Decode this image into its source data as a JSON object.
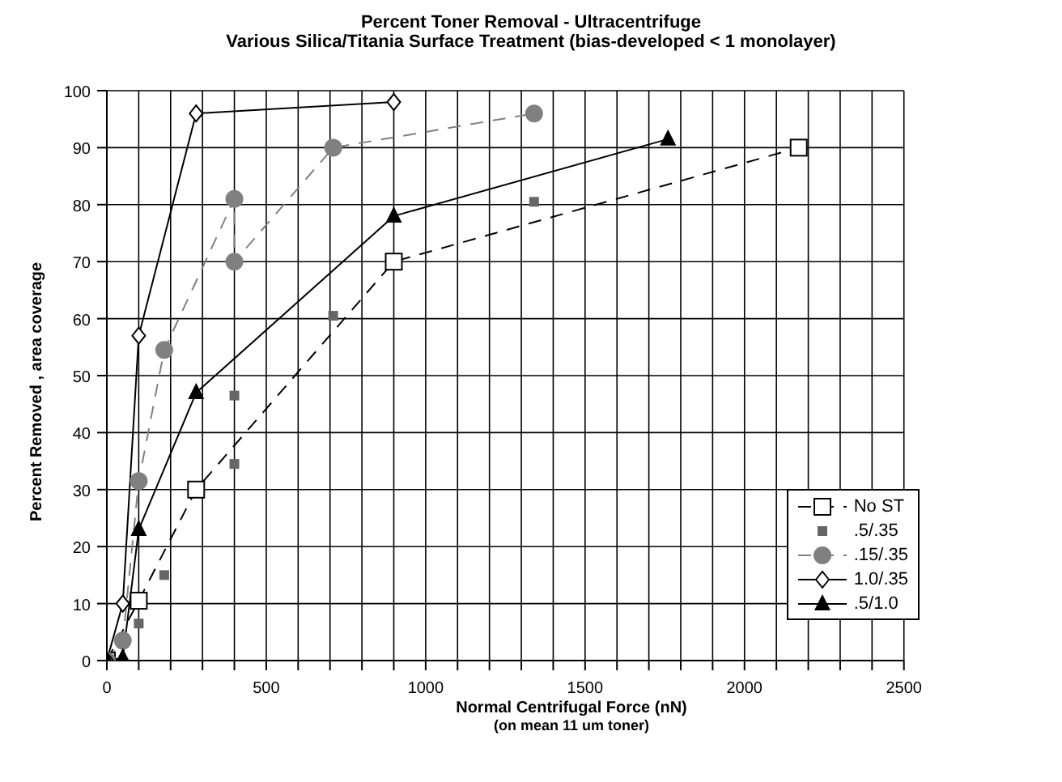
{
  "chart_data": {
    "type": "line",
    "title": "Percent Toner Removal - Ultracentrifuge",
    "subtitle": "Various Silica/Titania Surface Treatment (bias-developed < 1 monolayer)",
    "xlabel": "Normal Centrifugal Force (nN)",
    "annotations": [
      "(on mean 11 um toner)"
    ],
    "ylabel": "Percent Removed , area coverage",
    "xlim": [
      0,
      2500
    ],
    "ylim": [
      0,
      100
    ],
    "xticks": [
      0,
      {
        "value": 100,
        "label": null
      },
      {
        "value": 200,
        "label": null
      },
      {
        "value": 300,
        "label": null
      },
      {
        "value": 400,
        "label": null
      },
      500,
      {
        "value": 600,
        "label": null
      },
      {
        "value": 700,
        "label": null
      },
      {
        "value": 800,
        "label": null
      },
      {
        "value": 900,
        "label": null
      },
      1000,
      {
        "value": 1100,
        "label": null
      },
      {
        "value": 1200,
        "label": null
      },
      {
        "value": 1300,
        "label": null
      },
      {
        "value": 1400,
        "label": null
      },
      1500,
      {
        "value": 1600,
        "label": null
      },
      {
        "value": 1700,
        "label": null
      },
      {
        "value": 1800,
        "label": null
      },
      {
        "value": 1900,
        "label": null
      },
      2000,
      {
        "value": 2100,
        "label": null
      },
      {
        "value": 2200,
        "label": null
      },
      {
        "value": 2300,
        "label": null
      },
      {
        "value": 2400,
        "label": null
      },
      2500
    ],
    "yticks": [
      0,
      10,
      20,
      30,
      40,
      50,
      60,
      70,
      80,
      90,
      100
    ],
    "grid": true,
    "legend": "right",
    "series": [
      {
        "name": "No ST",
        "color": "#000000",
        "marker": "square",
        "line_style": "dashed",
        "x": [
          0,
          100,
          280,
          900,
          2170
        ],
        "values": [
          0,
          10.5,
          30,
          70,
          90
        ]
      },
      {
        "name": ".5/.35",
        "type": "scatter",
        "color": "#666666",
        "marker": "square",
        "x": [
          100,
          180,
          400,
          400,
          710,
          1340
        ],
        "values": [
          6.5,
          15,
          34.5,
          46.5,
          60.5,
          80.5
        ]
      },
      {
        "name": ".15/.35",
        "color": "#808080",
        "marker": "circle",
        "line_style": "dashed",
        "x": [
          0,
          50,
          100,
          180,
          400,
          400,
          710,
          1340
        ],
        "values": [
          0,
          3.5,
          31.5,
          54.5,
          81,
          70,
          90,
          96
        ]
      },
      {
        "name": "1.0/.35",
        "color": "#000000",
        "marker": "diamond",
        "line_style": "solid",
        "x": [
          0,
          50,
          100,
          280,
          900
        ],
        "values": [
          0,
          10,
          57,
          96,
          98
        ]
      },
      {
        "name": ".5/1.0",
        "color": "#000000",
        "marker": "triangle",
        "line_style": "solid",
        "x": [
          0,
          50,
          100,
          280,
          900,
          1760
        ],
        "values": [
          0,
          0.5,
          23,
          47,
          78,
          91.5
        ]
      }
    ]
  }
}
